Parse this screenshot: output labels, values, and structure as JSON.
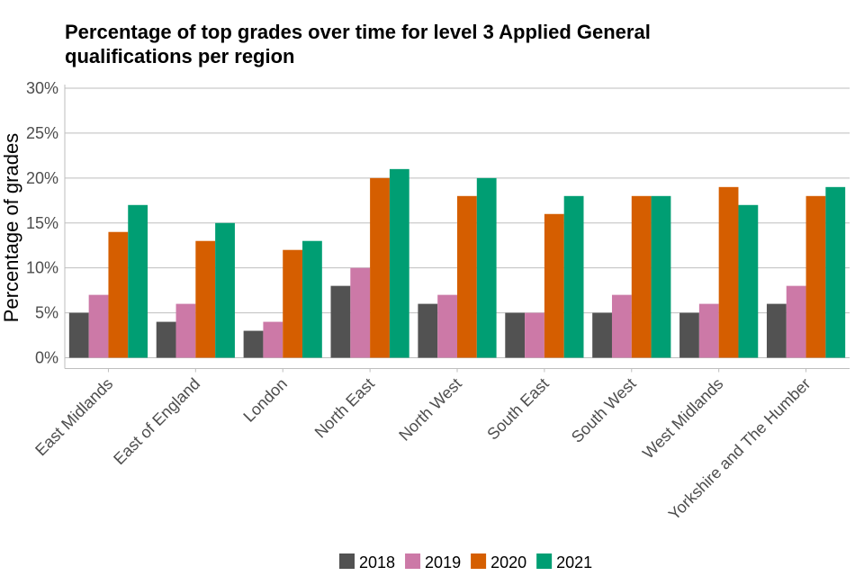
{
  "chart_data": {
    "type": "bar",
    "title": "Percentage of top grades over time for level 3 Applied General qualifications per region",
    "title_lines": [
      "Percentage of top grades over time for level 3 Applied General",
      "qualifications per region"
    ],
    "xlabel": "",
    "ylabel": "Percentage of grades",
    "ylim": [
      0,
      30
    ],
    "yticks": [
      0,
      5,
      10,
      15,
      20,
      25,
      30
    ],
    "ytick_labels": [
      "0%",
      "5%",
      "10%",
      "15%",
      "20%",
      "25%",
      "30%"
    ],
    "grid": true,
    "legend_position": "bottom",
    "categories": [
      "East Midlands",
      "East of England",
      "London",
      "North East",
      "North West",
      "South East",
      "South West",
      "West Midlands",
      "Yorkshire and The Humber"
    ],
    "series": [
      {
        "name": "2018",
        "color": "#525252",
        "values": [
          5,
          4,
          3,
          8,
          6,
          5,
          5,
          5,
          6
        ]
      },
      {
        "name": "2019",
        "color": "#CC79A7",
        "values": [
          7,
          6,
          4,
          10,
          7,
          5,
          7,
          6,
          8
        ]
      },
      {
        "name": "2020",
        "color": "#D55E00",
        "values": [
          14,
          13,
          12,
          20,
          18,
          16,
          18,
          19,
          18
        ]
      },
      {
        "name": "2021",
        "color": "#009E73",
        "values": [
          17,
          15,
          13,
          21,
          20,
          18,
          18,
          17,
          19
        ]
      }
    ]
  }
}
